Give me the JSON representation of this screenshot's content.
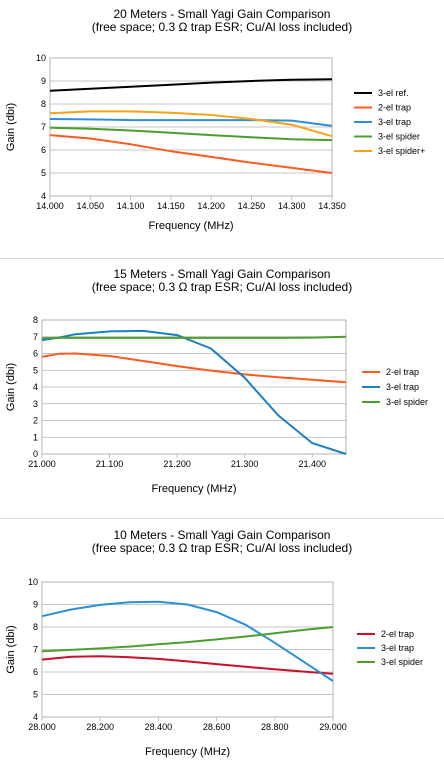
{
  "chart_data": [
    {
      "type": "line",
      "title": "20 Meters - Small Yagi Gain Comparison",
      "subtitle": "(free space; 0.3 Ω trap ESR; Cu/Al loss included)",
      "xlabel": "Frequency (MHz)",
      "ylabel": "Gain (dbi)",
      "xlim": [
        14.0,
        14.35
      ],
      "ylim": [
        4,
        10
      ],
      "xticks": [
        "14.000",
        "14.050",
        "14.100",
        "14.150",
        "14.200",
        "14.250",
        "14.300",
        "14.350"
      ],
      "yticks": [
        "4",
        "5",
        "6",
        "7",
        "8",
        "9",
        "10"
      ],
      "grid": true,
      "legend_position": "right",
      "x": [
        14.0,
        14.05,
        14.1,
        14.15,
        14.2,
        14.25,
        14.3,
        14.35
      ],
      "series": [
        {
          "name": "3-el ref.",
          "color": "#000000",
          "values": [
            8.58,
            8.66,
            8.75,
            8.84,
            8.93,
            9.0,
            9.05,
            9.08
          ]
        },
        {
          "name": "2-el trap",
          "color": "#ff5a1f",
          "values": [
            6.65,
            6.5,
            6.25,
            5.95,
            5.7,
            5.45,
            5.22,
            5.0
          ]
        },
        {
          "name": "3-el trap",
          "color": "#2c8fd7",
          "values": [
            7.35,
            7.33,
            7.3,
            7.3,
            7.3,
            7.3,
            7.28,
            7.05
          ]
        },
        {
          "name": "3-el spider",
          "color": "#4aa02c",
          "values": [
            6.97,
            6.92,
            6.85,
            6.75,
            6.65,
            6.55,
            6.47,
            6.43
          ]
        },
        {
          "name": "3-el spider+",
          "color": "#f5a31a",
          "values": [
            7.6,
            7.68,
            7.68,
            7.62,
            7.52,
            7.35,
            7.1,
            6.6
          ]
        }
      ]
    },
    {
      "type": "line",
      "title": "15 Meters - Small Yagi Gain Comparison",
      "subtitle": "(free space; 0.3 Ω trap ESR; Cu/Al loss included)",
      "xlabel": "Frequency (MHz)",
      "ylabel": "Gain (dbi)",
      "xlim": [
        21.0,
        21.45
      ],
      "ylim": [
        0,
        8
      ],
      "xticks": [
        "21.000",
        "21.100",
        "21.200",
        "21.300",
        "21.400"
      ],
      "yticks": [
        "0",
        "1",
        "2",
        "3",
        "4",
        "5",
        "6",
        "7",
        "8"
      ],
      "grid": true,
      "legend_position": "right",
      "x": [
        21.0,
        21.025,
        21.05,
        21.1,
        21.15,
        21.2,
        21.25,
        21.3,
        21.35,
        21.4,
        21.45
      ],
      "series": [
        {
          "name": "2-el trap",
          "color": "#ff5a1f",
          "values": [
            5.8,
            5.98,
            6.0,
            5.85,
            5.55,
            5.25,
            4.98,
            4.75,
            4.58,
            4.43,
            4.28
          ]
        },
        {
          "name": "3-el trap",
          "color": "#1b7fc4",
          "values": [
            6.8,
            6.95,
            7.15,
            7.32,
            7.35,
            7.1,
            6.3,
            4.55,
            2.3,
            0.65,
            0.0
          ]
        },
        {
          "name": "3-el spider",
          "color": "#4aa02c",
          "values": [
            6.92,
            6.93,
            6.93,
            6.93,
            6.93,
            6.93,
            6.93,
            6.93,
            6.93,
            6.95,
            7.0
          ]
        }
      ]
    },
    {
      "type": "line",
      "title": "10 Meters - Small Yagi Gain Comparison",
      "subtitle": "(free space; 0.3 Ω trap ESR; Cu/Al loss included)",
      "xlabel": "Frequency (MHz)",
      "ylabel": "Gain (dbi)",
      "xlim": [
        28.0,
        29.0
      ],
      "ylim": [
        4,
        10
      ],
      "xticks": [
        "28.000",
        "28.200",
        "28.400",
        "28.600",
        "28.800",
        "29.000"
      ],
      "yticks": [
        "4",
        "5",
        "6",
        "7",
        "8",
        "9",
        "10"
      ],
      "grid": true,
      "legend_position": "right",
      "x": [
        28.0,
        28.1,
        28.2,
        28.3,
        28.4,
        28.5,
        28.6,
        28.7,
        28.8,
        28.9,
        29.0
      ],
      "series": [
        {
          "name": "2-el trap",
          "color": "#c8102e",
          "values": [
            6.55,
            6.68,
            6.7,
            6.66,
            6.58,
            6.47,
            6.35,
            6.23,
            6.12,
            6.02,
            5.92
          ]
        },
        {
          "name": "3-el trap",
          "color": "#2c8fd7",
          "values": [
            8.48,
            8.78,
            8.98,
            9.1,
            9.12,
            9.0,
            8.66,
            8.1,
            7.3,
            6.45,
            5.6
          ]
        },
        {
          "name": "3-el spider",
          "color": "#4aa02c",
          "values": [
            6.92,
            6.98,
            7.05,
            7.13,
            7.23,
            7.33,
            7.45,
            7.58,
            7.72,
            7.87,
            8.0
          ]
        }
      ]
    }
  ]
}
